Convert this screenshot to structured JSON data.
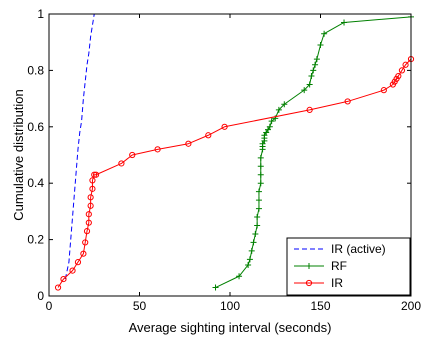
{
  "chart_data": {
    "type": "line",
    "title": "",
    "xlabel": "Average sighting interval (seconds)",
    "ylabel": "Cumulative distribution",
    "xlim": [
      0,
      200
    ],
    "ylim": [
      0,
      1
    ],
    "x_ticks": [
      0,
      50,
      100,
      150,
      200
    ],
    "y_ticks": [
      0,
      0.2,
      0.4,
      0.6,
      0.8,
      1
    ],
    "x_tick_labels": [
      "0",
      "50",
      "100",
      "150",
      "200"
    ],
    "y_tick_labels": [
      "0",
      "0.2",
      "0.4",
      "0.6",
      "0.8",
      "1"
    ],
    "grid": false,
    "legend_position": "lower-right",
    "series": [
      {
        "name": "IR (active)",
        "color": "#0000ff",
        "line_style": "dashed",
        "marker": "none",
        "x": [
          9,
          11,
          12,
          13,
          14,
          15,
          16,
          17,
          18,
          19,
          20,
          21,
          22,
          23,
          24,
          25
        ],
        "y": [
          0.06,
          0.12,
          0.2,
          0.28,
          0.36,
          0.44,
          0.52,
          0.58,
          0.62,
          0.7,
          0.76,
          0.82,
          0.86,
          0.92,
          0.96,
          1.0
        ]
      },
      {
        "name": "RF",
        "color": "#008000",
        "line_style": "solid",
        "marker": "plus",
        "x": [
          92,
          105,
          110,
          111,
          112,
          113,
          114,
          115,
          115,
          116,
          116,
          116,
          117,
          117,
          117,
          117,
          118,
          118,
          118,
          119,
          119,
          119,
          120,
          121,
          122,
          123,
          125,
          127,
          130,
          141,
          144,
          145,
          146,
          147,
          148,
          150,
          152,
          163,
          200
        ],
        "y": [
          0.03,
          0.07,
          0.11,
          0.13,
          0.16,
          0.19,
          0.22,
          0.25,
          0.28,
          0.31,
          0.34,
          0.37,
          0.4,
          0.43,
          0.46,
          0.49,
          0.52,
          0.53,
          0.54,
          0.55,
          0.56,
          0.57,
          0.58,
          0.59,
          0.6,
          0.62,
          0.63,
          0.66,
          0.68,
          0.73,
          0.75,
          0.78,
          0.8,
          0.82,
          0.84,
          0.89,
          0.93,
          0.97,
          0.99
        ]
      },
      {
        "name": "IR",
        "color": "#ff0000",
        "line_style": "solid",
        "marker": "circle",
        "x": [
          5,
          8,
          13,
          16,
          19,
          20,
          21,
          22,
          22,
          23,
          23,
          24,
          24,
          25,
          26,
          40,
          46,
          60,
          77,
          88,
          97,
          144,
          165,
          185,
          190,
          191,
          192,
          193,
          195,
          197,
          200
        ],
        "y": [
          0.03,
          0.06,
          0.09,
          0.12,
          0.15,
          0.19,
          0.23,
          0.26,
          0.29,
          0.32,
          0.35,
          0.38,
          0.41,
          0.43,
          0.43,
          0.47,
          0.5,
          0.52,
          0.54,
          0.57,
          0.6,
          0.66,
          0.69,
          0.73,
          0.75,
          0.76,
          0.77,
          0.78,
          0.8,
          0.82,
          0.84
        ]
      }
    ]
  }
}
